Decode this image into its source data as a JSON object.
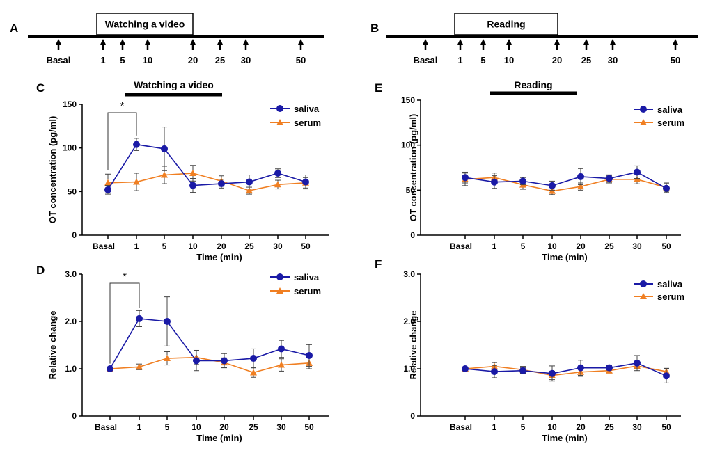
{
  "timeline_a": {
    "panel_label": "A",
    "box_label": "Watching a video",
    "timepoints": [
      "Basal",
      "1",
      "5",
      "10",
      "20",
      "25",
      "30",
      "50"
    ]
  },
  "timeline_b": {
    "panel_label": "B",
    "box_label": "Reading",
    "timepoints": [
      "Basal",
      "1",
      "5",
      "10",
      "20",
      "25",
      "30",
      "50"
    ]
  },
  "colors": {
    "saliva": "#1a1aa6",
    "serum": "#f07f22",
    "axis": "#000000",
    "error": "#444444"
  },
  "chart_data": [
    {
      "panel": "C",
      "type": "line",
      "title": "Watching a video",
      "xlabel": "Time (min)",
      "ylabel": "OT concentration (pg/ml)",
      "categories": [
        "Basal",
        "1",
        "5",
        "10",
        "20",
        "25",
        "30",
        "50"
      ],
      "ylim": [
        0,
        150
      ],
      "yticks": [
        0,
        50,
        100,
        150
      ],
      "ytick_labels": [
        "0",
        "50",
        "100",
        "150"
      ],
      "series": [
        {
          "name": "saliva",
          "values": [
            52,
            104,
            99,
            57,
            59,
            61,
            71,
            61
          ],
          "errors": [
            5,
            7,
            25,
            8,
            5,
            8,
            5,
            8
          ]
        },
        {
          "name": "serum",
          "values": [
            60,
            61,
            69,
            71,
            62,
            51,
            58,
            60
          ],
          "errors": [
            10,
            10,
            10,
            9,
            6,
            4,
            5,
            6
          ]
        }
      ],
      "significance": {
        "label": "*",
        "from": "Basal",
        "to": "1"
      }
    },
    {
      "panel": "D",
      "type": "line",
      "title": "",
      "xlabel": "Time (min)",
      "ylabel": "Relative change",
      "categories": [
        "Basal",
        "1",
        "5",
        "10",
        "20",
        "25",
        "30",
        "50"
      ],
      "ylim": [
        0,
        3
      ],
      "yticks": [
        0,
        1,
        2,
        3
      ],
      "ytick_labels": [
        "0",
        "1.0",
        "2.0",
        "3.0"
      ],
      "series": [
        {
          "name": "saliva",
          "values": [
            1.0,
            2.06,
            2.0,
            1.17,
            1.17,
            1.22,
            1.42,
            1.28
          ],
          "errors": [
            0.02,
            0.17,
            0.52,
            0.21,
            0.15,
            0.2,
            0.18,
            0.23
          ]
        },
        {
          "name": "serum",
          "values": [
            1.0,
            1.04,
            1.22,
            1.24,
            1.13,
            0.92,
            1.08,
            1.12
          ],
          "errors": [
            0.02,
            0.06,
            0.14,
            0.15,
            0.1,
            0.1,
            0.13,
            0.12
          ]
        }
      ],
      "significance": {
        "label": "*",
        "from": "Basal",
        "to": "1"
      }
    },
    {
      "panel": "E",
      "type": "line",
      "title": "Reading",
      "xlabel": "Time (min)",
      "ylabel": "OT concentration (pg/ml)",
      "categories": [
        "Basal",
        "1",
        "5",
        "10",
        "20",
        "25",
        "30",
        "50"
      ],
      "ylim": [
        0,
        150
      ],
      "yticks": [
        0,
        50,
        100,
        150
      ],
      "ytick_labels": [
        "0",
        "50",
        "100",
        "150"
      ],
      "series": [
        {
          "name": "saliva",
          "values": [
            64,
            59,
            60,
            55,
            65,
            63,
            70,
            52
          ],
          "errors": [
            6,
            7,
            4,
            5,
            9,
            4,
            7,
            5
          ]
        },
        {
          "name": "serum",
          "values": [
            62,
            64,
            56,
            49,
            54,
            62,
            62,
            53
          ],
          "errors": [
            7,
            5,
            5,
            4,
            4,
            4,
            5,
            5
          ]
        }
      ]
    },
    {
      "panel": "F",
      "type": "line",
      "title": "",
      "xlabel": "Time (min)",
      "ylabel": "Relative change",
      "categories": [
        "Basal",
        "1",
        "5",
        "10",
        "20",
        "25",
        "30",
        "50"
      ],
      "ylim": [
        0,
        3
      ],
      "yticks": [
        0,
        1,
        2,
        3
      ],
      "ytick_labels": [
        "0",
        "1.0",
        "2.0",
        "3.0"
      ],
      "series": [
        {
          "name": "saliva",
          "values": [
            1.0,
            0.94,
            0.96,
            0.9,
            1.02,
            1.02,
            1.12,
            0.85
          ],
          "errors": [
            0.03,
            0.13,
            0.06,
            0.16,
            0.16,
            0.05,
            0.16,
            0.15
          ]
        },
        {
          "name": "serum",
          "values": [
            1.0,
            1.05,
            0.98,
            0.86,
            0.93,
            0.96,
            1.06,
            0.94
          ],
          "errors": [
            0.03,
            0.08,
            0.07,
            0.09,
            0.09,
            0.05,
            0.06,
            0.07
          ]
        }
      ]
    }
  ]
}
